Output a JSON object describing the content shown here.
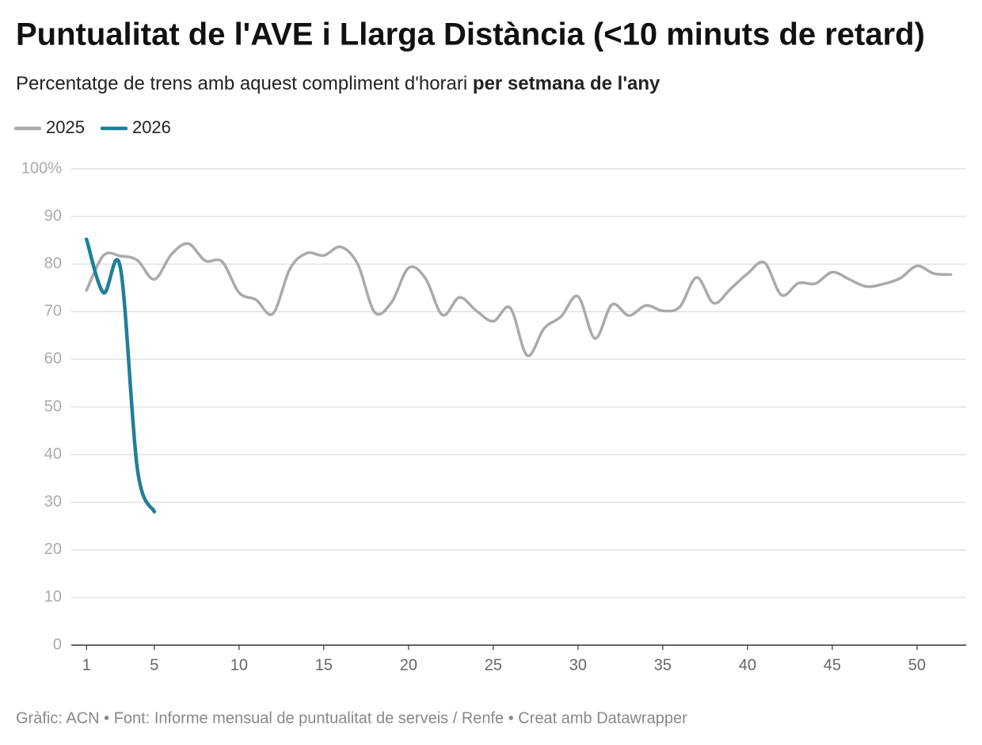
{
  "chart_data": {
    "type": "line",
    "title": "Puntualitat de l'AVE i Llarga Distància (<10 minuts de retard)",
    "subtitle": [
      "Percentatge de trens amb aquest compliment d'horari",
      "per setmana de l'any"
    ],
    "source": "Gràfic: ACN • Font: Informe mensual de puntualitat de serveis / Renfe • Creat amb Datawrapper",
    "x": [
      1,
      2,
      3,
      4,
      5,
      6,
      7,
      8,
      9,
      10,
      11,
      12,
      13,
      14,
      15,
      16,
      17,
      18,
      19,
      20,
      21,
      22,
      23,
      24,
      25,
      26,
      27,
      28,
      29,
      30,
      31,
      32,
      33,
      34,
      35,
      36,
      37,
      38,
      39,
      40,
      41,
      42,
      43,
      44,
      45,
      46,
      47,
      48,
      49,
      50,
      51,
      52
    ],
    "series": [
      {
        "name": "2025",
        "color": "#aaaaaa",
        "values": [
          74.5,
          81.8,
          81.7,
          80.8,
          76.8,
          82,
          84.3,
          80.7,
          80.5,
          74,
          72.5,
          69.6,
          79,
          82.3,
          81.8,
          83.6,
          80,
          69.9,
          72,
          79.2,
          77,
          69.3,
          73,
          70.2,
          68,
          70.8,
          60.8,
          66.5,
          69,
          73.2,
          64.4,
          71.5,
          69.2,
          71.3,
          70.2,
          71,
          77.2,
          71.8,
          74.8,
          78,
          80.3,
          73.5,
          76,
          75.9,
          78.3,
          76.8,
          75.3,
          75.8,
          77,
          79.6,
          78,
          77.8
        ]
      },
      {
        "name": "2026",
        "color": "#1f7f99",
        "values": [
          85.2,
          74,
          79.2,
          37,
          28,
          null,
          null,
          null,
          null,
          null,
          null,
          null,
          null,
          null,
          null,
          null,
          null,
          null,
          null,
          null,
          null,
          null,
          null,
          null,
          null,
          null,
          null,
          null,
          null,
          null,
          null,
          null,
          null,
          null,
          null,
          null,
          null,
          null,
          null,
          null,
          null,
          null,
          null,
          null,
          null,
          null,
          null,
          null,
          null,
          null,
          null,
          null
        ]
      }
    ],
    "xlim": [
      0.1,
      52.9
    ],
    "ylim": [
      0,
      100
    ],
    "xticks": [
      1,
      5,
      10,
      15,
      20,
      25,
      30,
      35,
      40,
      45,
      50
    ],
    "yticks": [
      0,
      10,
      20,
      30,
      40,
      50,
      60,
      70,
      80,
      90,
      {
        "value": 100,
        "label": "100%"
      }
    ],
    "grid": true,
    "legend": "top-left"
  }
}
